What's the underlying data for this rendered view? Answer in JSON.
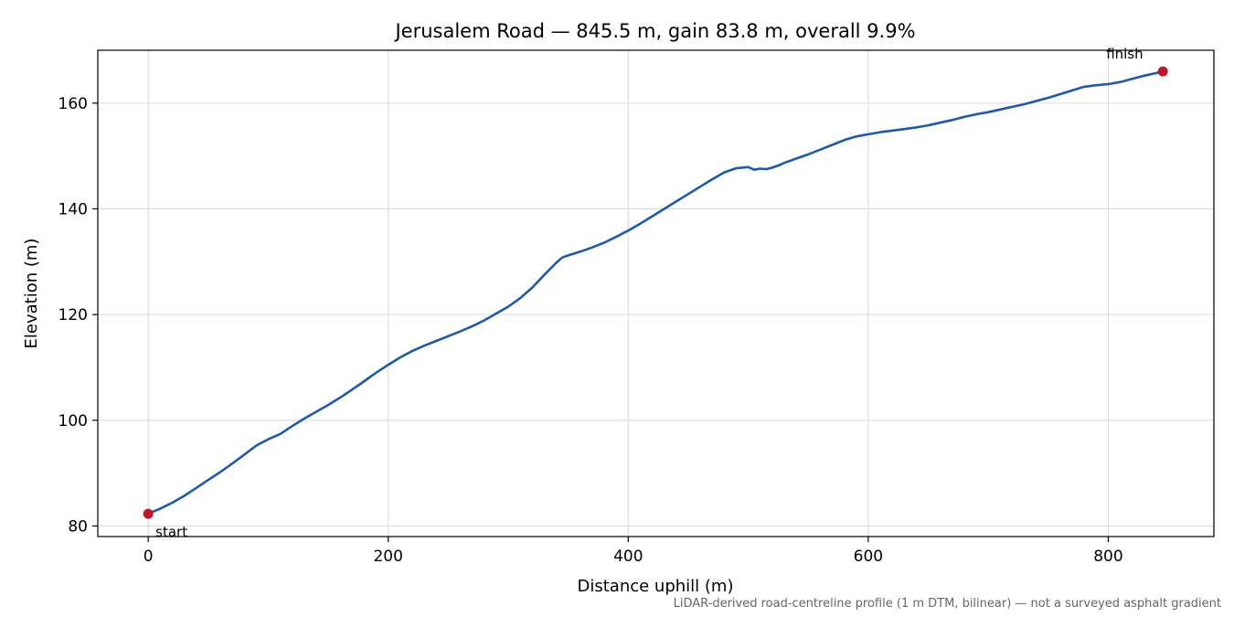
{
  "chart_data": {
    "type": "line",
    "title": "Jerusalem Road — 845.5 m, gain 83.8 m, overall 9.9%",
    "xlabel": "Distance uphill (m)",
    "ylabel": "Elevation (m)",
    "xlim": [
      -42,
      888
    ],
    "ylim": [
      78,
      170
    ],
    "xticks": [
      0,
      200,
      400,
      600,
      800
    ],
    "yticks": [
      80,
      100,
      120,
      140,
      160
    ],
    "grid": true,
    "line_color": "#1f5aa6",
    "marker_color": "#c0182a",
    "series": [
      {
        "x": [
          0,
          10,
          20,
          30,
          40,
          50,
          60,
          70,
          80,
          90,
          100,
          110,
          120,
          130,
          140,
          150,
          160,
          170,
          180,
          190,
          200,
          210,
          220,
          230,
          240,
          250,
          260,
          270,
          280,
          290,
          300,
          310,
          320,
          330,
          340,
          345,
          350,
          360,
          370,
          380,
          390,
          400,
          410,
          420,
          430,
          440,
          450,
          460,
          470,
          480,
          490,
          500,
          505,
          510,
          515,
          520,
          525,
          530,
          540,
          550,
          560,
          570,
          580,
          590,
          600,
          610,
          620,
          630,
          640,
          650,
          660,
          670,
          680,
          690,
          700,
          710,
          720,
          730,
          740,
          750,
          760,
          770,
          780,
          790,
          800,
          810,
          820,
          830,
          840,
          845.5
        ],
        "y": [
          82.3,
          83.3,
          84.4,
          85.7,
          87.2,
          88.7,
          90.2,
          91.8,
          93.5,
          95.2,
          96.4,
          97.4,
          98.9,
          100.3,
          101.6,
          102.9,
          104.3,
          105.8,
          107.4,
          109.0,
          110.5,
          111.9,
          113.1,
          114.1,
          115.0,
          115.9,
          116.8,
          117.8,
          118.9,
          120.2,
          121.5,
          123.1,
          125.1,
          127.5,
          129.8,
          130.8,
          131.2,
          131.9,
          132.7,
          133.6,
          134.7,
          135.9,
          137.2,
          138.6,
          140.0,
          141.4,
          142.8,
          144.2,
          145.6,
          146.9,
          147.7,
          147.9,
          147.4,
          147.6,
          147.5,
          147.8,
          148.2,
          148.7,
          149.5,
          150.3,
          151.2,
          152.1,
          153.0,
          153.7,
          154.1,
          154.5,
          154.8,
          155.1,
          155.4,
          155.8,
          156.3,
          156.8,
          157.4,
          157.9,
          158.3,
          158.8,
          159.3,
          159.8,
          160.4,
          161.0,
          161.7,
          162.4,
          163.1,
          163.4,
          163.6,
          164.0,
          164.6,
          165.2,
          165.7,
          166.0
        ]
      }
    ],
    "annotations": [
      {
        "text": "start",
        "x": 0,
        "y": 82.3
      },
      {
        "text": "finish",
        "x": 845.5,
        "y": 166.0
      }
    ],
    "footnote": "LiDAR-derived road-centreline profile (1 m DTM, bilinear) — not a surveyed asphalt gradient"
  }
}
